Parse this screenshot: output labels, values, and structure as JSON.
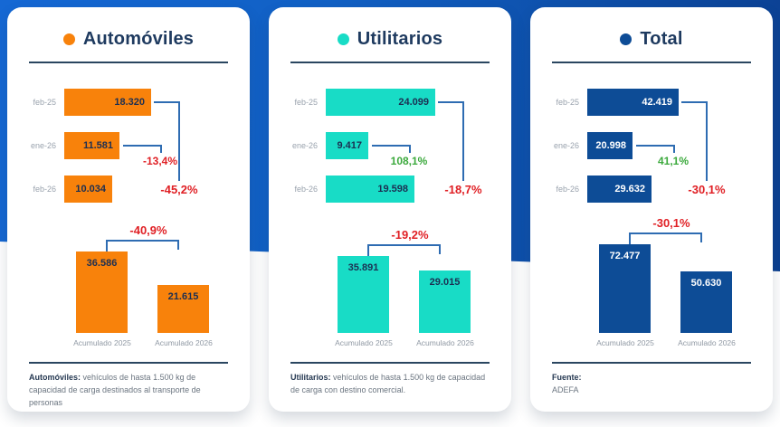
{
  "colors": {
    "band_left": "#1568d4",
    "band_right": "#0b3f90",
    "connector": "#2e6cb2",
    "divider": "#2a4660",
    "title_text": "#1e3a5f",
    "month_label": "#9aa3ae",
    "category_label": "#9099a4",
    "negative": "#E02025",
    "positive": "#3BA93C"
  },
  "chart_data": [
    {
      "type": "bar",
      "title": "Automóviles",
      "accent_color": "#F8820B",
      "value_color": "#1C2F52",
      "monthly": {
        "orientation": "horizontal",
        "categories": [
          "feb-25",
          "ene-26",
          "feb-26"
        ],
        "values": [
          18320,
          11581,
          10034
        ],
        "value_labels": [
          "18.320",
          "11.581",
          "10.034"
        ],
        "mom_change": "-13,4%",
        "mom_change_color": "#E02025",
        "yoy_change": "-45,2%",
        "yoy_change_color": "#E02025"
      },
      "cumulative": {
        "orientation": "vertical",
        "categories": [
          "Acumulado 2025",
          "Acumulado 2026"
        ],
        "values": [
          36586,
          21615
        ],
        "value_labels": [
          "36.586",
          "21.615"
        ],
        "change": "-40,9%",
        "change_color": "#E02025"
      },
      "footnote": {
        "bold": "Automóviles:",
        "text": " vehículos de hasta 1.500 kg de capacidad de carga destinados al transporte de personas"
      }
    },
    {
      "type": "bar",
      "title": "Utilitarios",
      "accent_color": "#18DCC6",
      "value_color": "#1C2F52",
      "monthly": {
        "orientation": "horizontal",
        "categories": [
          "feb-25",
          "ene-26",
          "feb-26"
        ],
        "values": [
          24099,
          9417,
          19598
        ],
        "value_labels": [
          "24.099",
          "9.417",
          "19.598"
        ],
        "mom_change": "108,1%",
        "mom_change_color": "#3BA93C",
        "yoy_change": "-18,7%",
        "yoy_change_color": "#E02025"
      },
      "cumulative": {
        "orientation": "vertical",
        "categories": [
          "Acumulado 2025",
          "Acumulado 2026"
        ],
        "values": [
          35891,
          29015
        ],
        "value_labels": [
          "35.891",
          "29.015"
        ],
        "change": "-19,2%",
        "change_color": "#E02025"
      },
      "footnote": {
        "bold": "Utilitarios:",
        "text": " vehículos de hasta 1.500 kg de capacidad de carga con destino comercial."
      }
    },
    {
      "type": "bar",
      "title": "Total",
      "accent_color": "#0D4C96",
      "value_color": "#FFFFFF",
      "monthly": {
        "orientation": "horizontal",
        "categories": [
          "feb-25",
          "ene-26",
          "feb-26"
        ],
        "values": [
          42419,
          20998,
          29632
        ],
        "value_labels": [
          "42.419",
          "20.998",
          "29.632"
        ],
        "mom_change": "41,1%",
        "mom_change_color": "#3BA93C",
        "yoy_change": "-30,1%",
        "yoy_change_color": "#E02025"
      },
      "cumulative": {
        "orientation": "vertical",
        "categories": [
          "Acumulado 2025",
          "Acumulado 2026"
        ],
        "values": [
          72477,
          50630
        ],
        "value_labels": [
          "72.477",
          "50.630"
        ],
        "change": "-30,1%",
        "change_color": "#E02025"
      },
      "footnote": {
        "bold": "Fuente:",
        "text": "ADEFA"
      }
    }
  ]
}
